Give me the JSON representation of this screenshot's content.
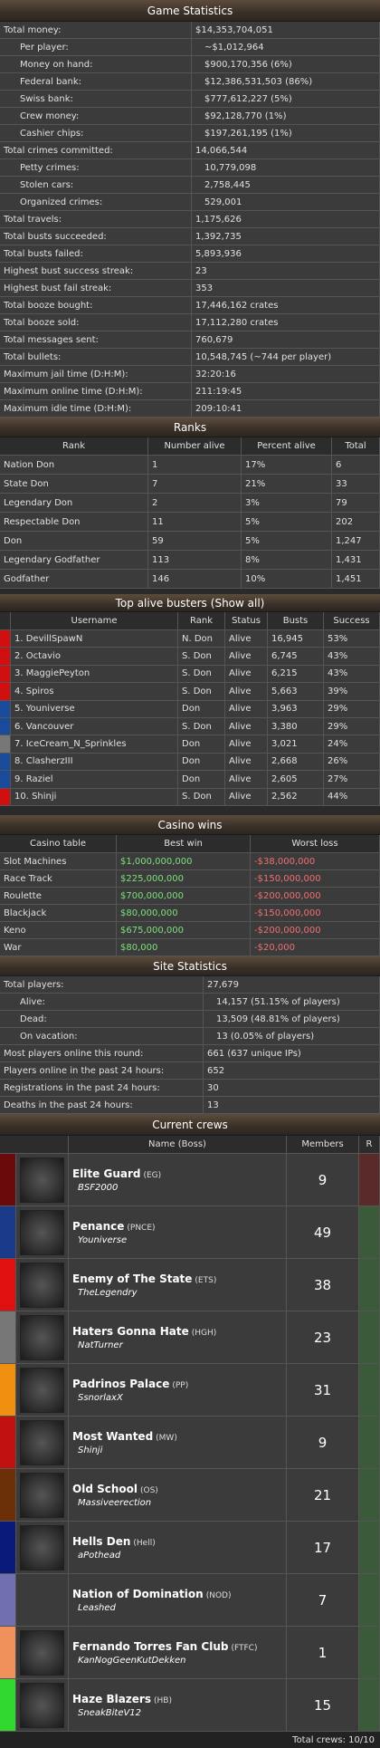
{
  "game_statistics": {
    "title": "Game Statistics",
    "rows": [
      {
        "label": "Total money:",
        "value": "$14,353,704,051",
        "sub": [
          {
            "label": "Per player:",
            "value": "~$1,012,964"
          },
          {
            "label": "Money on hand:",
            "value": "$900,170,356 (6%)"
          },
          {
            "label": "Federal bank:",
            "value": "$12,386,531,503 (86%)"
          },
          {
            "label": "Swiss bank:",
            "value": "$777,612,227 (5%)"
          },
          {
            "label": "Crew money:",
            "value": "$92,128,770 (1%)"
          },
          {
            "label": "Cashier chips:",
            "value": "$197,261,195 (1%)"
          }
        ]
      },
      {
        "label": "Total crimes committed:",
        "value": "14,066,544",
        "sub": [
          {
            "label": "Petty crimes:",
            "value": "10,779,098"
          },
          {
            "label": "Stolen cars:",
            "value": "2,758,445"
          },
          {
            "label": "Organized crimes:",
            "value": "529,001"
          }
        ]
      },
      {
        "label": "Total travels:",
        "value": "1,175,626"
      },
      {
        "label": "Total busts succeeded:",
        "value": "1,392,735"
      },
      {
        "label": "Total busts failed:",
        "value": "5,893,936"
      },
      {
        "label": "Highest bust success streak:",
        "value": "23"
      },
      {
        "label": "Highest bust fail streak:",
        "value": "353"
      },
      {
        "label": "Total booze bought:",
        "value": "17,446,162 crates"
      },
      {
        "label": "Total booze sold:",
        "value": "17,112,280 crates"
      },
      {
        "label": "Total messages sent:",
        "value": "760,679"
      },
      {
        "label": "Total bullets:",
        "value": "10,548,745 (~744 per player)"
      },
      {
        "label": "Maximum jail time (D:H:M):",
        "value": "32:20:16"
      },
      {
        "label": "Maximum online time (D:H:M):",
        "value": "211:19:45"
      },
      {
        "label": "Maximum idle time (D:H:M):",
        "value": "209:10:41"
      }
    ]
  },
  "ranks": {
    "title": "Ranks",
    "columns": [
      "Rank",
      "Number alive",
      "Percent alive",
      "Total"
    ],
    "rows": [
      [
        "Nation Don",
        "1",
        "17%",
        "6"
      ],
      [
        "State Don",
        "7",
        "21%",
        "33"
      ],
      [
        "Legendary Don",
        "2",
        "3%",
        "79"
      ],
      [
        "Respectable Don",
        "11",
        "5%",
        "202"
      ],
      [
        "Don",
        "59",
        "5%",
        "1,247"
      ],
      [
        "Legendary Godfather",
        "113",
        "8%",
        "1,431"
      ],
      [
        "Godfather",
        "146",
        "10%",
        "1,451"
      ]
    ]
  },
  "top_alive_busters": {
    "title": "Top alive busters",
    "link": "(Show all)",
    "columns": [
      "Username",
      "Rank",
      "Status",
      "Busts",
      "Success"
    ],
    "rows": [
      {
        "color": "#d01010",
        "cells": [
          "1. DevillSpawN",
          "N. Don",
          "Alive",
          "16,945",
          "53%"
        ]
      },
      {
        "color": "#d01010",
        "cells": [
          "2. Octavio",
          "S. Don",
          "Alive",
          "6,745",
          "43%"
        ]
      },
      {
        "color": "#d01010",
        "cells": [
          "3. MaggiePeyton",
          "S. Don",
          "Alive",
          "6,215",
          "43%"
        ]
      },
      {
        "color": "#d01010",
        "cells": [
          "4. Spiros",
          "S. Don",
          "Alive",
          "5,663",
          "39%"
        ]
      },
      {
        "color": "#1a4a9a",
        "cells": [
          "5. Youniverse",
          "Don",
          "Alive",
          "3,963",
          "29%"
        ]
      },
      {
        "color": "#1a4a9a",
        "cells": [
          "6. Vancouver",
          "S. Don",
          "Alive",
          "3,380",
          "29%"
        ]
      },
      {
        "color": "#777777",
        "cells": [
          "7. IceCream_N_Sprinkles",
          "Don",
          "Alive",
          "3,021",
          "24%"
        ]
      },
      {
        "color": "#1a4a9a",
        "cells": [
          "8. ClasherzIII",
          "Don",
          "Alive",
          "2,668",
          "26%"
        ]
      },
      {
        "color": "#1a4a9a",
        "cells": [
          "9. Raziel",
          "Don",
          "Alive",
          "2,605",
          "27%"
        ]
      },
      {
        "color": "#d01010",
        "cells": [
          "10. Shinji",
          "S. Don",
          "Alive",
          "2,562",
          "44%"
        ]
      }
    ]
  },
  "casino_wins": {
    "title": "Casino wins",
    "columns": [
      "Casino table",
      "Best win",
      "Worst loss"
    ],
    "rows": [
      [
        "Slot Machines",
        "$1,000,000,000",
        "-$38,000,000"
      ],
      [
        "Race Track",
        "$225,000,000",
        "-$150,000,000"
      ],
      [
        "Roulette",
        "$700,000,000",
        "-$200,000,000"
      ],
      [
        "Blackjack",
        "$80,000,000",
        "-$150,000,000"
      ],
      [
        "Keno",
        "$675,000,000",
        "-$200,000,000"
      ],
      [
        "War",
        "$80,000",
        "-$20,000"
      ]
    ]
  },
  "site_statistics": {
    "title": "Site Statistics",
    "rows": [
      {
        "label": "Total players:",
        "value": "27,679",
        "sub": [
          {
            "label": "Alive:",
            "value": "14,157 (51.15% of players)"
          },
          {
            "label": "Dead:",
            "value": "13,509 (48.81% of players)"
          },
          {
            "label": "On vacation:",
            "value": "13 (0.05% of players)"
          }
        ]
      },
      {
        "label": "Most players online this round:",
        "value": "661 (637 unique IPs)"
      },
      {
        "label": "Players online in the past 24 hours:",
        "value": "652"
      },
      {
        "label": "Registrations in the past 24 hours:",
        "value": "30"
      },
      {
        "label": "Deaths in the past 24 hours:",
        "value": "13"
      }
    ]
  },
  "current_crews": {
    "title": "Current crews",
    "columns": [
      "Name (Boss)",
      "Members",
      "R"
    ],
    "rows": [
      {
        "name": "Elite Guard",
        "tag": "(EG)",
        "boss": "BSF2000",
        "members": "9",
        "color": "#6b0a0a",
        "r_color": "#5a2a2a"
      },
      {
        "name": "Penance",
        "tag": "(PNCE)",
        "boss": "Youniverse",
        "members": "49",
        "color": "#1a3a8a",
        "r_color": "#3a5a3a"
      },
      {
        "name": "Enemy of The State",
        "tag": "(ETS)",
        "boss": "TheLegendry",
        "members": "38",
        "color": "#e01010",
        "r_color": "#3a5a3a"
      },
      {
        "name": "Haters Gonna Hate",
        "tag": "(HGH)",
        "boss": "NatTurner",
        "members": "23",
        "color": "#777777",
        "r_color": "#3a5a3a"
      },
      {
        "name": "Padrinos Palace",
        "tag": "(PP)",
        "boss": "SsnorlaxX",
        "members": "31",
        "color": "#f09010",
        "r_color": "#3a5a3a"
      },
      {
        "name": "Most Wanted",
        "tag": "(MW)",
        "boss": "Shinji",
        "members": "9",
        "color": "#c01010",
        "r_color": "#3a5a3a"
      },
      {
        "name": "Old School",
        "tag": "(OS)",
        "boss": "Massiveerection",
        "members": "21",
        "color": "#6b3008",
        "r_color": "#3a5a3a"
      },
      {
        "name": "Hells Den",
        "tag": "(Hell)",
        "boss": "aPothead",
        "members": "17",
        "color": "#0a1a7a",
        "r_color": "#3a5a3a"
      },
      {
        "name": "Nation of Domination",
        "tag": "(NOD)",
        "boss": "Leashed",
        "members": "7",
        "color": "#7070b0",
        "r_color": "#3a5a3a"
      },
      {
        "name": "Fernando Torres Fan Club",
        "tag": "(FTFC)",
        "boss": "KanNogGeenKutDekken",
        "members": "1",
        "color": "#f0905a",
        "r_color": "#3a5a3a"
      },
      {
        "name": "Haze Blazers",
        "tag": "(HB)",
        "boss": "SneakBiteV12",
        "members": "15",
        "color": "#30d830",
        "r_color": "#3a5a3a"
      }
    ],
    "footer": "Total crews: 10/10"
  }
}
